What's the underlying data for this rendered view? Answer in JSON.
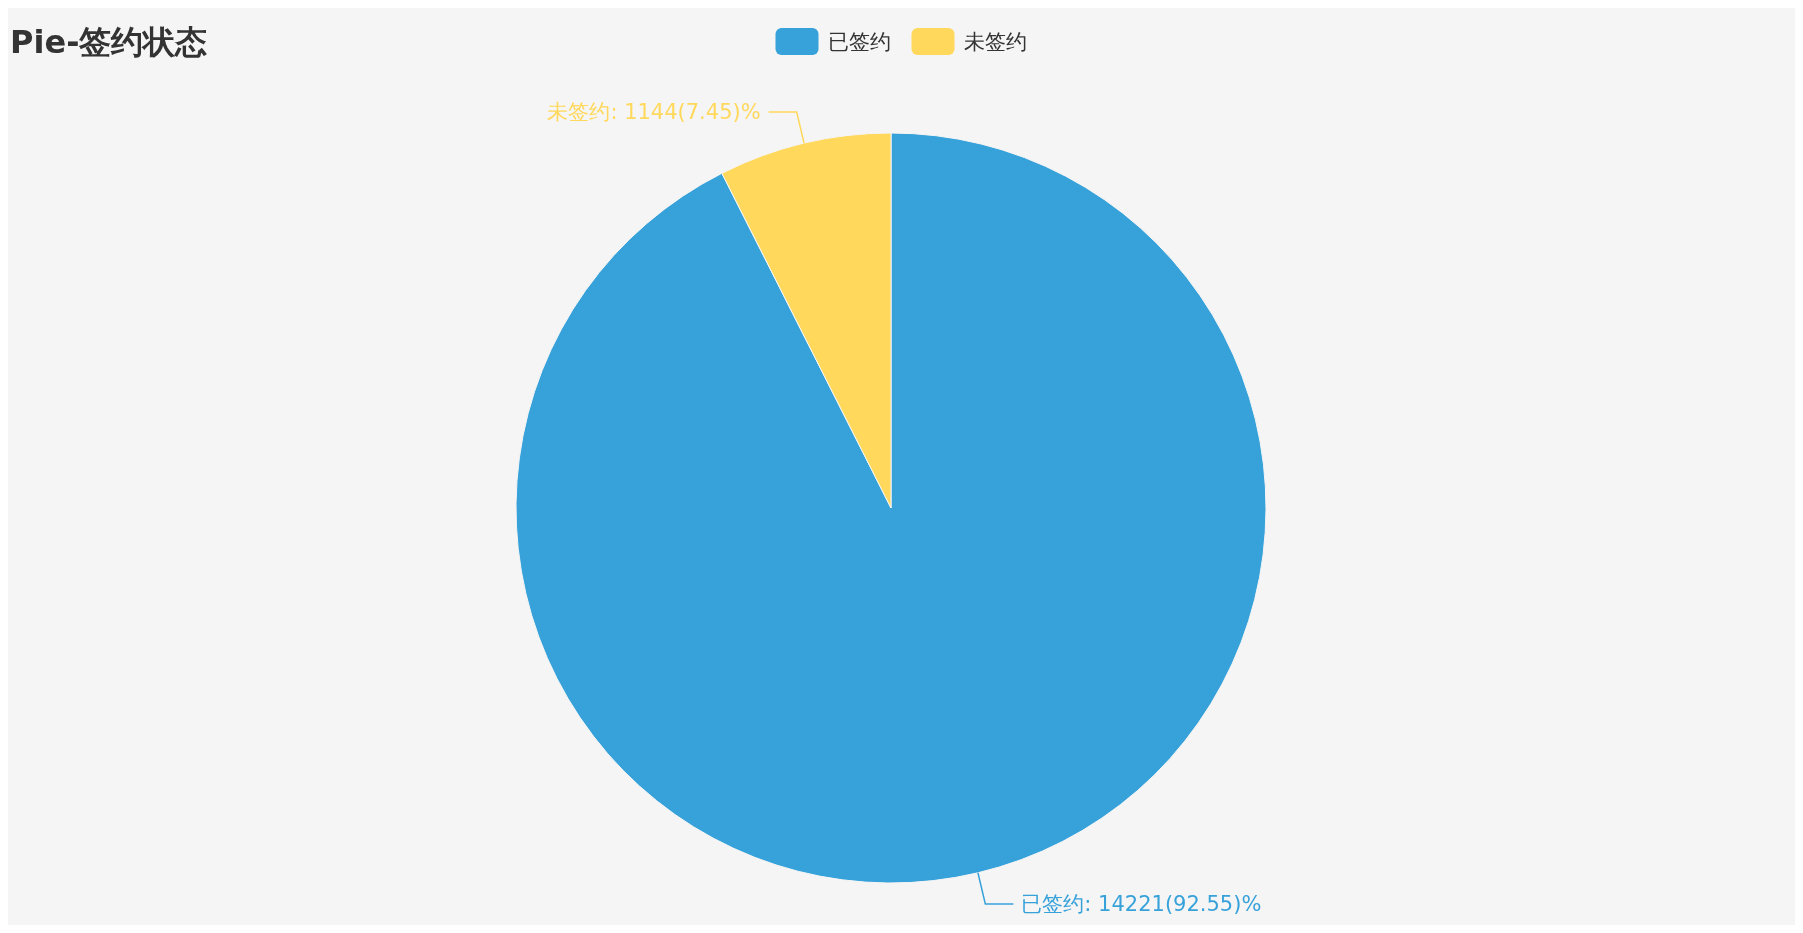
{
  "chart_data": {
    "type": "pie",
    "title": "Pie-签约状态",
    "categories": [
      "已签约",
      "未签约"
    ],
    "values": [
      14221,
      1144
    ],
    "colors": [
      "#37a2da",
      "#ffd85c"
    ],
    "value_labels": [
      "已签约: 14221(92.55)%",
      "未签约: 1144(7.45)%"
    ],
    "legend": "top"
  }
}
